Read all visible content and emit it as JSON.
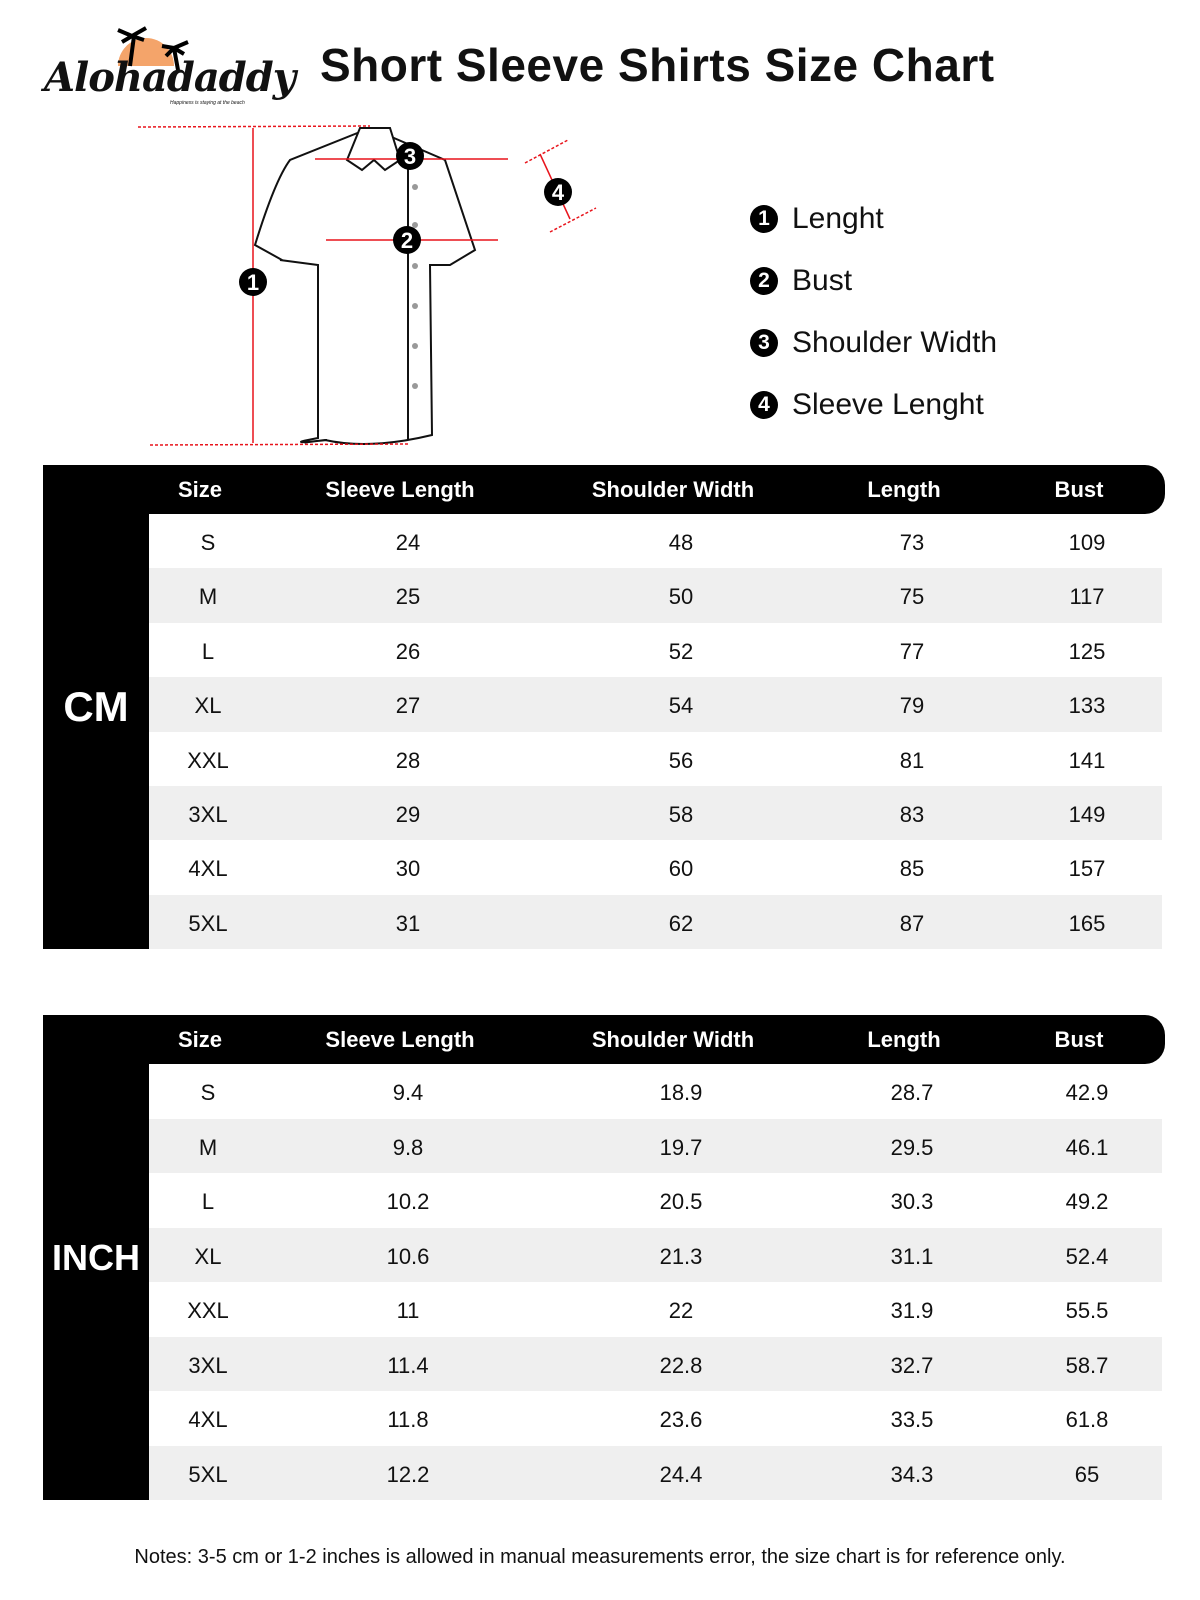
{
  "brand": {
    "name": "Alohadaddy",
    "tagline": "Happiness is staying at the beach",
    "sun_color": "#f4a46a"
  },
  "title": "Short Sleeve Shirts Size Chart",
  "legend": [
    {
      "num": "1",
      "label": "Lenght"
    },
    {
      "num": "2",
      "label": "Bust"
    },
    {
      "num": "3",
      "label": "Shoulder Width"
    },
    {
      "num": "4",
      "label": "Sleeve Lenght"
    }
  ],
  "columns": [
    "Size",
    "Sleeve Length",
    "Shoulder Width",
    "Length",
    "Bust"
  ],
  "tables": [
    {
      "unit": "CM",
      "rows": [
        [
          "S",
          "24",
          "48",
          "73",
          "109"
        ],
        [
          "M",
          "25",
          "50",
          "75",
          "117"
        ],
        [
          "L",
          "26",
          "52",
          "77",
          "125"
        ],
        [
          "XL",
          "27",
          "54",
          "79",
          "133"
        ],
        [
          "XXL",
          "28",
          "56",
          "81",
          "141"
        ],
        [
          "3XL",
          "29",
          "58",
          "83",
          "149"
        ],
        [
          "4XL",
          "30",
          "60",
          "85",
          "157"
        ],
        [
          "5XL",
          "31",
          "62",
          "87",
          "165"
        ]
      ]
    },
    {
      "unit": "INCH",
      "rows": [
        [
          "S",
          "9.4",
          "18.9",
          "28.7",
          "42.9"
        ],
        [
          "M",
          "9.8",
          "19.7",
          "29.5",
          "46.1"
        ],
        [
          "L",
          "10.2",
          "20.5",
          "30.3",
          "49.2"
        ],
        [
          "XL",
          "10.6",
          "21.3",
          "31.1",
          "52.4"
        ],
        [
          "XXL",
          "11",
          "22",
          "31.9",
          "55.5"
        ],
        [
          "3XL",
          "11.4",
          "22.8",
          "32.7",
          "58.7"
        ],
        [
          "4XL",
          "11.8",
          "23.6",
          "33.5",
          "61.8"
        ],
        [
          "5XL",
          "12.2",
          "24.4",
          "34.3",
          "65"
        ]
      ]
    }
  ],
  "notes": "Notes: 3-5 cm or 1-2 inches is allowed in manual measurements error, the size chart is for reference only.",
  "accent_color": "#e8141c"
}
